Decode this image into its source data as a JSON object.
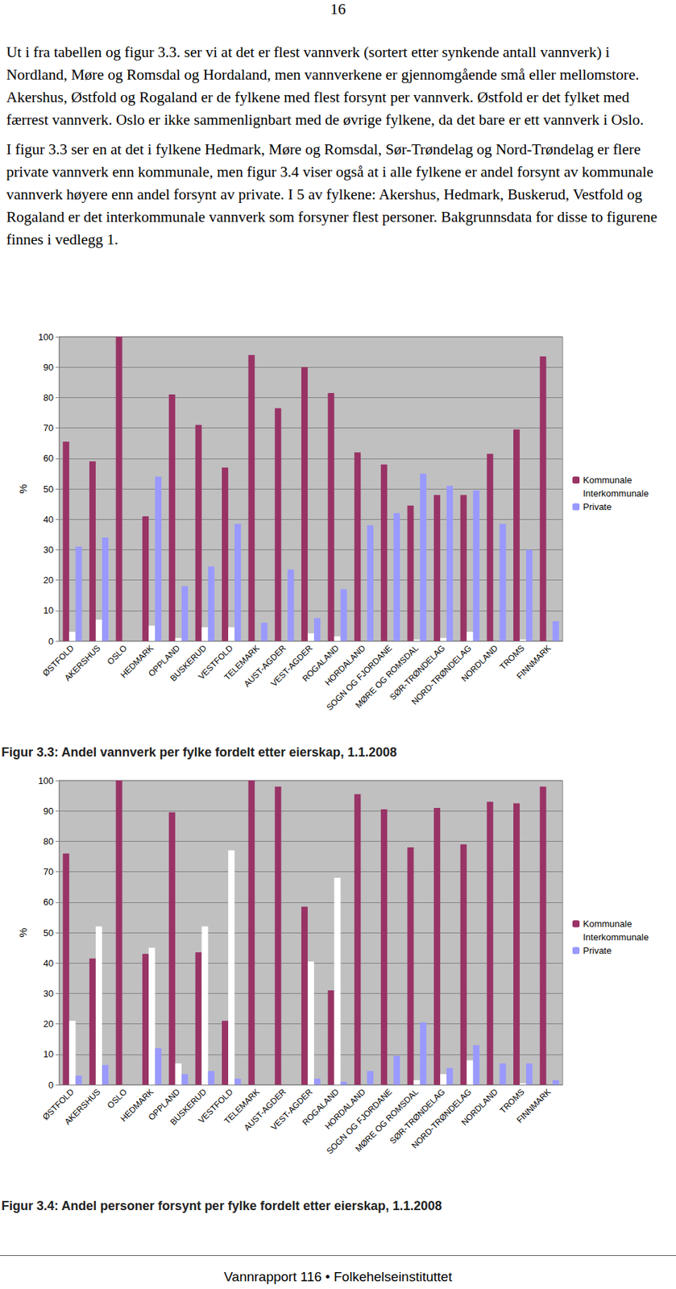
{
  "page_number": "16",
  "paragraphs": [
    "Ut i fra tabellen og figur 3.3. ser vi at det er flest vannverk (sortert etter synkende antall vannverk) i Nordland, Møre og Romsdal og Hordaland, men vannverkene er gjennomgående små eller mellomstore. Akershus, Østfold og Rogaland er de fylkene med flest forsynt per vannverk. Østfold er det fylket med færrest vannverk. Oslo er ikke sammenlignbart med de øvrige fylkene, da det bare er ett vannverk i Oslo.",
    "I figur 3.3 ser en at det i fylkene Hedmark, Møre og Romsdal, Sør-Trøndelag og Nord-Trøndelag er flere private vannverk enn kommunale, men figur 3.4 viser også at i alle fylkene er andel forsynt av kommunale vannverk høyere enn andel forsynt av private. I 5 av fylkene: Akershus, Hedmark, Buskerud, Vestfold og Rogaland er det interkommunale vannverk som forsyner flest personer. Bakgrunnsdata for disse to figurene finnes i vedlegg 1."
  ],
  "chart_data": [
    {
      "type": "bar",
      "title": "Figur 3.3: Andel vannverk per fylke fordelt etter eierskap, 1.1.2008",
      "ylabel": "%",
      "categories": [
        "ØSTFOLD",
        "AKERSHUS",
        "OSLO",
        "HEDMARK",
        "OPPLAND",
        "BUSKERUD",
        "VESTFOLD",
        "TELEMARK",
        "AUST-AGDER",
        "VEST-AGDER",
        "ROGALAND",
        "HORDALAND",
        "SOGN OG FJORDANE",
        "MØRE OG ROMSDAL",
        "SØR-TRØNDELAG",
        "NORD-TRØNDELAG",
        "NORDLAND",
        "TROMS",
        "FINNMARK"
      ],
      "series": [
        {
          "name": "Kommunale",
          "color": "#993366",
          "values": [
            65.5,
            59,
            100,
            41,
            81,
            71,
            57,
            94,
            76.5,
            90,
            81.5,
            62,
            58,
            44.5,
            48,
            48,
            61.5,
            69.5,
            93.5
          ]
        },
        {
          "name": "Interkommunale",
          "color": "#ffffff",
          "values": [
            3,
            7,
            0,
            5,
            1,
            4.5,
            4.5,
            0,
            0,
            2.5,
            1.5,
            0,
            0,
            0.5,
            1,
            3,
            0,
            0.5,
            0
          ]
        },
        {
          "name": "Private",
          "color": "#9999ff",
          "values": [
            31,
            34,
            0,
            54,
            18,
            24.5,
            38.5,
            6,
            23.5,
            7.5,
            17,
            38,
            42,
            55,
            51,
            49.5,
            38.5,
            30,
            6.5
          ]
        }
      ],
      "ylim": [
        0,
        100
      ],
      "yticks": [
        0,
        10,
        20,
        30,
        40,
        50,
        60,
        70,
        80,
        90,
        100
      ],
      "grid": true,
      "legend": "right"
    },
    {
      "type": "bar",
      "title": "Figur 3.4: Andel personer forsynt per fylke fordelt etter eierskap, 1.1.2008",
      "ylabel": "%",
      "categories": [
        "ØSTFOLD",
        "AKERSHUS",
        "OSLO",
        "HEDMARK",
        "OPPLAND",
        "BUSKERUD",
        "VESTFOLD",
        "TELEMARK",
        "AUST-AGDER",
        "VEST-AGDER",
        "ROGALAND",
        "HORDALAND",
        "SOGN OG FJORDANE",
        "MØRE OG ROMSDAL",
        "SØR-TRØNDELAG",
        "NORD-TRØNDELAG",
        "NORDLAND",
        "TROMS",
        "FINNMARK"
      ],
      "series": [
        {
          "name": "Kommunale",
          "color": "#993366",
          "values": [
            76,
            41.5,
            100,
            43,
            89.5,
            43.5,
            21,
            100,
            98,
            58.5,
            31,
            95.5,
            90.5,
            78,
            91,
            79,
            93,
            92.5,
            98
          ]
        },
        {
          "name": "Interkommunale",
          "color": "#ffffff",
          "values": [
            21,
            52,
            0,
            45,
            7,
            52,
            77,
            0,
            0,
            40.5,
            68,
            0,
            0,
            1.5,
            3.5,
            8,
            0,
            0.5,
            0
          ]
        },
        {
          "name": "Private",
          "color": "#9999ff",
          "values": [
            3,
            6.5,
            0,
            12,
            3.5,
            4.5,
            2,
            0,
            0,
            2,
            1,
            4.5,
            9.5,
            20.5,
            5.5,
            13,
            7,
            7,
            1.5
          ]
        }
      ],
      "ylim": [
        0,
        100
      ],
      "yticks": [
        0,
        10,
        20,
        30,
        40,
        50,
        60,
        70,
        80,
        90,
        100
      ],
      "grid": true,
      "legend": "right"
    }
  ],
  "footer": "Vannrapport 116 • Folkehelseinstituttet"
}
